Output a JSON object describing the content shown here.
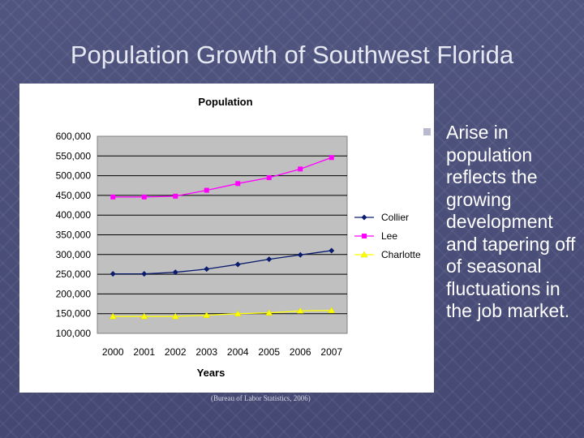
{
  "slide": {
    "title": "Population Growth of Southwest Florida",
    "source": "(Bureau of Labor Statistics, 2006)",
    "bullet": "Arise in population reflects the growing development and tapering off of seasonal fluctuations in the job market."
  },
  "colors": {
    "plot_bg": "#c0c0c0",
    "collier": "#0a1c6e",
    "lee": "#ff00ff",
    "charlotte": "#ffff00"
  },
  "chart_data": {
    "type": "line",
    "title": "Population",
    "xlabel": "Years",
    "ylabel": "",
    "ylim": [
      100000,
      600000
    ],
    "y_ticks": [
      "600,000",
      "550,000",
      "500,000",
      "450,000",
      "400,000",
      "350,000",
      "300,000",
      "250,000",
      "200,000",
      "150,000",
      "100,000"
    ],
    "y_tick_values": [
      600000,
      550000,
      500000,
      450000,
      400000,
      350000,
      300000,
      250000,
      200000,
      150000,
      100000
    ],
    "categories": [
      "2000",
      "2001",
      "2002",
      "2003",
      "2004",
      "2005",
      "2006",
      "2007"
    ],
    "grid": "horizontal",
    "legend_position": "right",
    "series": [
      {
        "name": "Collier",
        "marker": "diamond",
        "color": "#0a1c6e",
        "values": [
          251000,
          251000,
          255000,
          263000,
          275000,
          288000,
          299000,
          310000
        ]
      },
      {
        "name": "Lee",
        "marker": "square",
        "color": "#ff00ff",
        "values": [
          446000,
          446000,
          448000,
          463000,
          480000,
          495000,
          517000,
          546000
        ]
      },
      {
        "name": "Charlotte",
        "marker": "triangle",
        "color": "#ffff00",
        "values": [
          143000,
          143000,
          143000,
          146000,
          150000,
          152000,
          157000,
          158000
        ]
      }
    ]
  }
}
